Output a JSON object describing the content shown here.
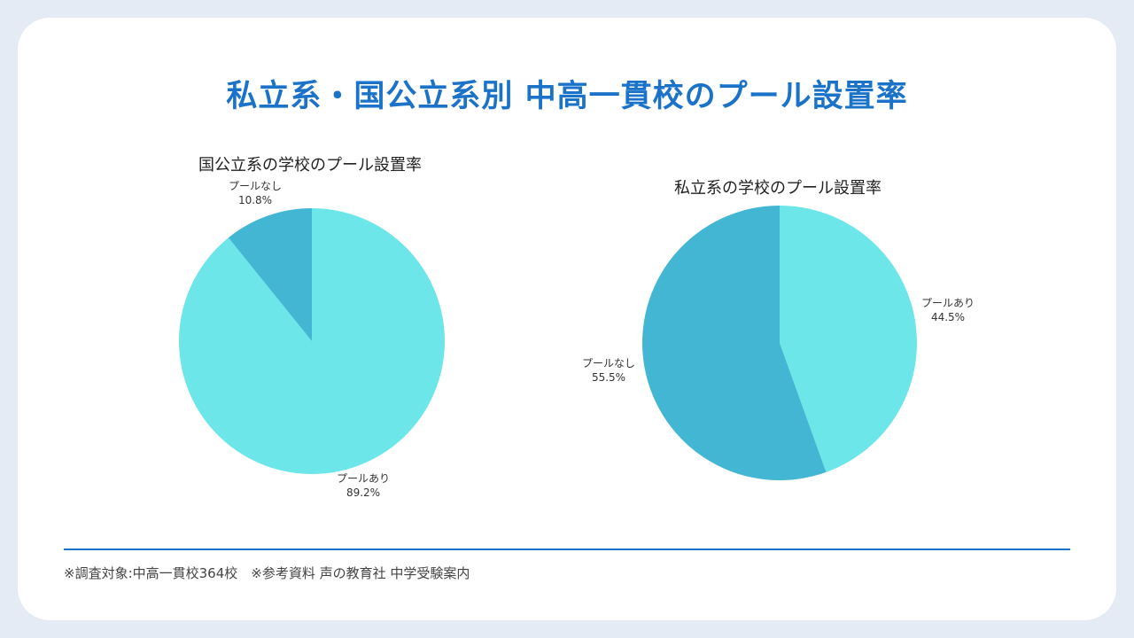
{
  "page": {
    "title": "私立系・国公立系別 中高一貫校のプール設置率",
    "footnote": "※調査対象:中高一貫校364校　※参考資料 声の教育社 中学受験案内"
  },
  "colors": {
    "accent": "#1a73c8",
    "pool_yes": "#6ce6e8",
    "pool_no": "#42b6d2",
    "background": "#e4ebf4",
    "card": "#ffffff"
  },
  "chart_data": [
    {
      "type": "pie",
      "title": "国公立系の学校のプール設置率",
      "slices": [
        {
          "label": "プールあり",
          "value": 89.2,
          "value_text": "89.2%",
          "color": "#6ce6e8"
        },
        {
          "label": "プールなし",
          "value": 10.8,
          "value_text": "10.8%",
          "color": "#42b6d2"
        }
      ]
    },
    {
      "type": "pie",
      "title": "私立系の学校のプール設置率",
      "slices": [
        {
          "label": "プールあり",
          "value": 44.5,
          "value_text": "44.5%",
          "color": "#6ce6e8"
        },
        {
          "label": "プールなし",
          "value": 55.5,
          "value_text": "55.5%",
          "color": "#42b6d2"
        }
      ]
    }
  ]
}
